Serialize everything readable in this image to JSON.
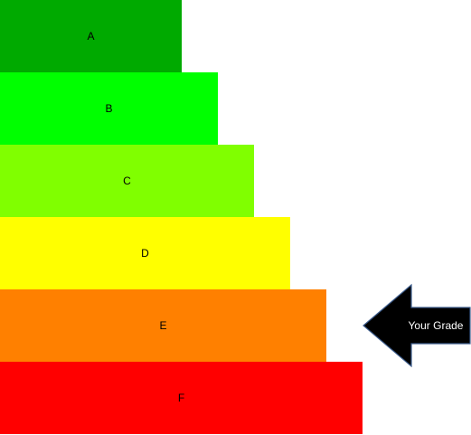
{
  "grades": [
    {
      "label": "A",
      "color": "#00aa00"
    },
    {
      "label": "B",
      "color": "#00ff00"
    },
    {
      "label": "C",
      "color": "#80ff00"
    },
    {
      "label": "D",
      "color": "#ffff00"
    },
    {
      "label": "E",
      "color": "#ff8000"
    },
    {
      "label": "F",
      "color": "#ff0000"
    }
  ],
  "indicator": {
    "text": "Your Grade",
    "points_to": "E",
    "fill_color": "#000000",
    "stroke_color": "#3a5a8a",
    "text_color": "#ffffff"
  }
}
